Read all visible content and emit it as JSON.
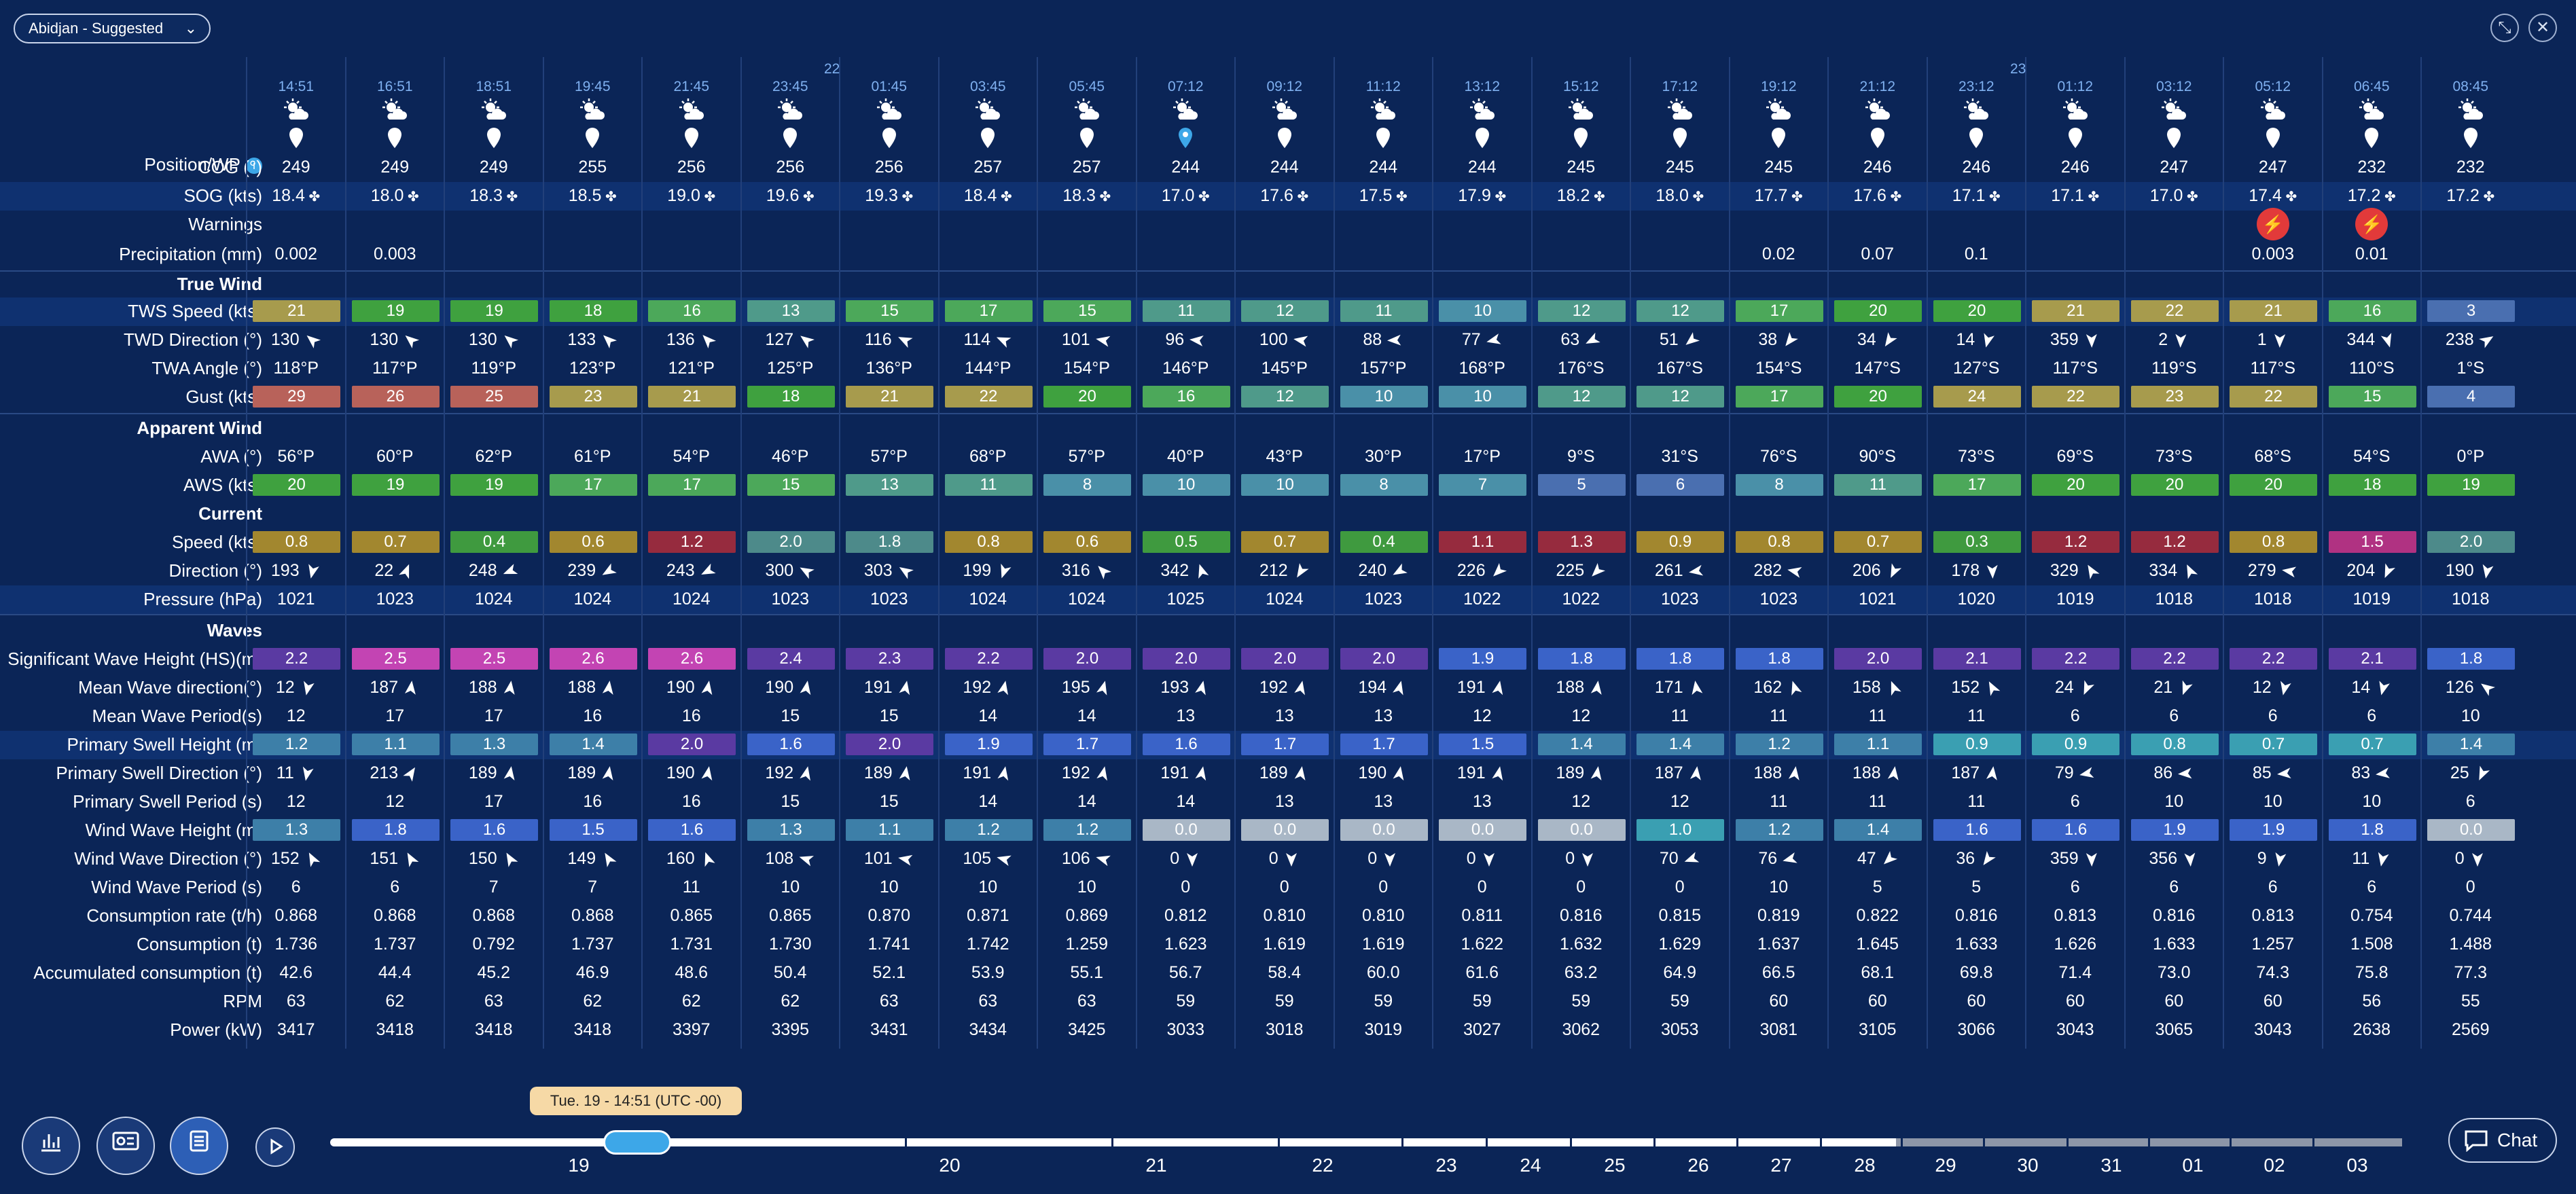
{
  "header": {
    "voyage_label": "Abidjan - Suggested",
    "expand_icon": "expand-icon",
    "close_icon": "close-icon"
  },
  "row_labels": {
    "position": "Position/WP",
    "cog": "COG (°)",
    "sog": "SOG (kts)",
    "warnings": "Warnings",
    "precip": "Precipitation (mm)",
    "true_wind": "True Wind",
    "tws": "TWS Speed (kts)",
    "twd": "TWD Direction (°)",
    "twa": "TWA Angle (°)",
    "gust": "Gust (kts)",
    "apparent_wind": "Apparent Wind",
    "awa": "AWA (°)",
    "aws": "AWS (kts)",
    "current": "Current",
    "cur_speed": "Speed (kts)",
    "cur_dir": "Direction (°)",
    "pressure": "Pressure (hPa)",
    "waves": "Waves",
    "swh": "Significant Wave Height (HS)(m)",
    "mwd": "Mean Wave direction(°)",
    "mwp": "Mean Wave Period(s)",
    "psh": "Primary Swell Height (m)",
    "psd": "Primary Swell Direction (°)",
    "psp": "Primary Swell Period (s)",
    "wwh": "Wind Wave Height (m)",
    "wwd": "Wind Wave Direction (°)",
    "wwp": "Wind Wave Period (s)",
    "cons_rate": "Consumption rate (t/h)",
    "cons": "Consumption (t)",
    "acc_cons": "Accumulated consumption (t)",
    "rpm": "RPM",
    "power": "Power (kW)"
  },
  "day_markers": [
    {
      "col": 6,
      "label": "22"
    },
    {
      "col": 18,
      "label": "23"
    }
  ],
  "columns": [
    {
      "time": "14:51",
      "cog": "249",
      "sog": "18.4",
      "precip": "0.002",
      "warn": false,
      "tws": "21",
      "twd": "130",
      "twa": "118°P",
      "gust": "29",
      "awa": "56°P",
      "aws": "20",
      "cs": "0.8",
      "cd": "193",
      "pr": "1021",
      "swh": "2.2",
      "mwd": "12",
      "mwp": "12",
      "psh": "1.2",
      "psd": "11",
      "psp": "12",
      "wwh": "1.3",
      "wwd": "152",
      "wwp": "6",
      "cr": "0.868",
      "c": "1.736",
      "ac": "42.6",
      "rpm": "63",
      "pw": "3417"
    },
    {
      "time": "16:51",
      "cog": "249",
      "sog": "18.0",
      "precip": "0.003",
      "warn": false,
      "tws": "19",
      "twd": "130",
      "twa": "117°P",
      "gust": "26",
      "awa": "60°P",
      "aws": "19",
      "cs": "0.7",
      "cd": "22",
      "pr": "1023",
      "swh": "2.5",
      "mwd": "187",
      "mwp": "17",
      "psh": "1.1",
      "psd": "213",
      "psp": "12",
      "wwh": "1.8",
      "wwd": "151",
      "wwp": "6",
      "cr": "0.868",
      "c": "1.737",
      "ac": "44.4",
      "rpm": "62",
      "pw": "3418"
    },
    {
      "time": "18:51",
      "cog": "249",
      "sog": "18.3",
      "precip": "",
      "warn": false,
      "tws": "19",
      "twd": "130",
      "twa": "119°P",
      "gust": "25",
      "awa": "62°P",
      "aws": "19",
      "cs": "0.4",
      "cd": "248",
      "pr": "1024",
      "swh": "2.5",
      "mwd": "188",
      "mwp": "17",
      "psh": "1.3",
      "psd": "189",
      "psp": "17",
      "wwh": "1.6",
      "wwd": "150",
      "wwp": "7",
      "cr": "0.868",
      "c": "0.792",
      "ac": "45.2",
      "rpm": "63",
      "pw": "3418"
    },
    {
      "time": "19:45",
      "cog": "255",
      "sog": "18.5",
      "precip": "",
      "warn": false,
      "tws": "18",
      "twd": "133",
      "twa": "123°P",
      "gust": "23",
      "awa": "61°P",
      "aws": "17",
      "cs": "0.6",
      "cd": "239",
      "pr": "1024",
      "swh": "2.6",
      "mwd": "188",
      "mwp": "16",
      "psh": "1.4",
      "psd": "189",
      "psp": "16",
      "wwh": "1.5",
      "wwd": "149",
      "wwp": "7",
      "cr": "0.868",
      "c": "1.737",
      "ac": "46.9",
      "rpm": "62",
      "pw": "3418"
    },
    {
      "time": "21:45",
      "cog": "256",
      "sog": "19.0",
      "precip": "",
      "warn": false,
      "tws": "16",
      "twd": "136",
      "twa": "121°P",
      "gust": "21",
      "awa": "54°P",
      "aws": "17",
      "cs": "1.2",
      "cd": "243",
      "pr": "1024",
      "swh": "2.6",
      "mwd": "190",
      "mwp": "16",
      "psh": "2.0",
      "psd": "190",
      "psp": "16",
      "wwh": "1.6",
      "wwd": "160",
      "wwp": "11",
      "cr": "0.865",
      "c": "1.731",
      "ac": "48.6",
      "rpm": "62",
      "pw": "3397"
    },
    {
      "time": "23:45",
      "cog": "256",
      "sog": "19.6",
      "precip": "",
      "warn": false,
      "tws": "13",
      "twd": "127",
      "twa": "125°P",
      "gust": "18",
      "awa": "46°P",
      "aws": "15",
      "cs": "2.0",
      "cd": "300",
      "pr": "1023",
      "swh": "2.4",
      "mwd": "190",
      "mwp": "15",
      "psh": "1.6",
      "psd": "192",
      "psp": "15",
      "wwh": "1.3",
      "wwd": "108",
      "wwp": "10",
      "cr": "0.865",
      "c": "1.730",
      "ac": "50.4",
      "rpm": "62",
      "pw": "3395"
    },
    {
      "time": "01:45",
      "cog": "256",
      "sog": "19.3",
      "precip": "",
      "warn": false,
      "tws": "15",
      "twd": "116",
      "twa": "136°P",
      "gust": "21",
      "awa": "57°P",
      "aws": "13",
      "cs": "1.8",
      "cd": "303",
      "pr": "1023",
      "swh": "2.3",
      "mwd": "191",
      "mwp": "15",
      "psh": "2.0",
      "psd": "189",
      "psp": "15",
      "wwh": "1.1",
      "wwd": "101",
      "wwp": "10",
      "cr": "0.870",
      "c": "1.741",
      "ac": "52.1",
      "rpm": "63",
      "pw": "3431"
    },
    {
      "time": "03:45",
      "cog": "257",
      "sog": "18.4",
      "precip": "",
      "warn": false,
      "tws": "17",
      "twd": "114",
      "twa": "144°P",
      "gust": "22",
      "awa": "68°P",
      "aws": "11",
      "cs": "0.8",
      "cd": "199",
      "pr": "1024",
      "swh": "2.2",
      "mwd": "192",
      "mwp": "14",
      "psh": "1.9",
      "psd": "191",
      "psp": "14",
      "wwh": "1.2",
      "wwd": "105",
      "wwp": "10",
      "cr": "0.871",
      "c": "1.742",
      "ac": "53.9",
      "rpm": "63",
      "pw": "3434"
    },
    {
      "time": "05:45",
      "cog": "257",
      "sog": "18.3",
      "precip": "",
      "warn": false,
      "tws": "15",
      "twd": "101",
      "twa": "154°P",
      "gust": "20",
      "awa": "57°P",
      "aws": "8",
      "cs": "0.6",
      "cd": "316",
      "pr": "1024",
      "swh": "2.0",
      "mwd": "195",
      "mwp": "14",
      "psh": "1.7",
      "psd": "192",
      "psp": "14",
      "wwh": "1.2",
      "wwd": "106",
      "wwp": "10",
      "cr": "0.869",
      "c": "1.259",
      "ac": "55.1",
      "rpm": "63",
      "pw": "3425"
    },
    {
      "time": "07:12",
      "cog": "244",
      "sog": "17.0",
      "precip": "",
      "warn": false,
      "tws": "11",
      "twd": "96",
      "twa": "146°P",
      "gust": "16",
      "awa": "40°P",
      "aws": "10",
      "cs": "0.5",
      "cd": "342",
      "pr": "1025",
      "swh": "2.0",
      "mwd": "193",
      "mwp": "13",
      "psh": "1.6",
      "psd": "191",
      "psp": "14",
      "wwh": "0.0",
      "wwd": "0",
      "wwp": "0",
      "cr": "0.812",
      "c": "1.623",
      "ac": "56.7",
      "rpm": "59",
      "pw": "3033",
      "wp": true
    },
    {
      "time": "09:12",
      "cog": "244",
      "sog": "17.6",
      "precip": "",
      "warn": false,
      "tws": "12",
      "twd": "100",
      "twa": "145°P",
      "gust": "12",
      "awa": "43°P",
      "aws": "10",
      "cs": "0.7",
      "cd": "212",
      "pr": "1024",
      "swh": "2.0",
      "mwd": "192",
      "mwp": "13",
      "psh": "1.7",
      "psd": "189",
      "psp": "13",
      "wwh": "0.0",
      "wwd": "0",
      "wwp": "0",
      "cr": "0.810",
      "c": "1.619",
      "ac": "58.4",
      "rpm": "59",
      "pw": "3018"
    },
    {
      "time": "11:12",
      "cog": "244",
      "sog": "17.5",
      "precip": "",
      "warn": false,
      "tws": "11",
      "twd": "88",
      "twa": "157°P",
      "gust": "10",
      "awa": "30°P",
      "aws": "8",
      "cs": "0.4",
      "cd": "240",
      "pr": "1023",
      "swh": "2.0",
      "mwd": "194",
      "mwp": "13",
      "psh": "1.7",
      "psd": "190",
      "psp": "13",
      "wwh": "0.0",
      "wwd": "0",
      "wwp": "0",
      "cr": "0.810",
      "c": "1.619",
      "ac": "60.0",
      "rpm": "59",
      "pw": "3019"
    },
    {
      "time": "13:12",
      "cog": "244",
      "sog": "17.9",
      "precip": "",
      "warn": false,
      "tws": "10",
      "twd": "77",
      "twa": "168°P",
      "gust": "10",
      "awa": "17°P",
      "aws": "7",
      "cs": "1.1",
      "cd": "226",
      "pr": "1022",
      "swh": "1.9",
      "mwd": "191",
      "mwp": "12",
      "psh": "1.5",
      "psd": "191",
      "psp": "13",
      "wwh": "0.0",
      "wwd": "0",
      "wwp": "0",
      "cr": "0.811",
      "c": "1.622",
      "ac": "61.6",
      "rpm": "59",
      "pw": "3027"
    },
    {
      "time": "15:12",
      "cog": "245",
      "sog": "18.2",
      "precip": "",
      "warn": false,
      "tws": "12",
      "twd": "63",
      "twa": "176°S",
      "gust": "12",
      "awa": "9°S",
      "aws": "5",
      "cs": "1.3",
      "cd": "225",
      "pr": "1022",
      "swh": "1.8",
      "mwd": "188",
      "mwp": "12",
      "psh": "1.4",
      "psd": "189",
      "psp": "12",
      "wwh": "0.0",
      "wwd": "0",
      "wwp": "0",
      "cr": "0.816",
      "c": "1.632",
      "ac": "63.2",
      "rpm": "59",
      "pw": "3062"
    },
    {
      "time": "17:12",
      "cog": "245",
      "sog": "18.0",
      "precip": "",
      "warn": false,
      "tws": "12",
      "twd": "51",
      "twa": "167°S",
      "gust": "12",
      "awa": "31°S",
      "aws": "6",
      "cs": "0.9",
      "cd": "261",
      "pr": "1023",
      "swh": "1.8",
      "mwd": "171",
      "mwp": "11",
      "psh": "1.4",
      "psd": "187",
      "psp": "12",
      "wwh": "1.0",
      "wwd": "70",
      "wwp": "0",
      "cr": "0.815",
      "c": "1.629",
      "ac": "64.9",
      "rpm": "59",
      "pw": "3053"
    },
    {
      "time": "19:12",
      "cog": "245",
      "sog": "17.7",
      "precip": "0.02",
      "warn": false,
      "tws": "17",
      "twd": "38",
      "twa": "154°S",
      "gust": "17",
      "awa": "76°S",
      "aws": "8",
      "cs": "0.8",
      "cd": "282",
      "pr": "1023",
      "swh": "1.8",
      "mwd": "162",
      "mwp": "11",
      "psh": "1.2",
      "psd": "188",
      "psp": "11",
      "wwh": "1.2",
      "wwd": "76",
      "wwp": "10",
      "cr": "0.819",
      "c": "1.637",
      "ac": "66.5",
      "rpm": "60",
      "pw": "3081"
    },
    {
      "time": "21:12",
      "cog": "246",
      "sog": "17.6",
      "precip": "0.07",
      "warn": false,
      "tws": "20",
      "twd": "34",
      "twa": "147°S",
      "gust": "20",
      "awa": "90°S",
      "aws": "11",
      "cs": "0.7",
      "cd": "206",
      "pr": "1021",
      "swh": "2.0",
      "mwd": "158",
      "mwp": "11",
      "psh": "1.1",
      "psd": "188",
      "psp": "11",
      "wwh": "1.4",
      "wwd": "47",
      "wwp": "5",
      "cr": "0.822",
      "c": "1.645",
      "ac": "68.1",
      "rpm": "60",
      "pw": "3105"
    },
    {
      "time": "23:12",
      "cog": "246",
      "sog": "17.1",
      "precip": "0.1",
      "warn": false,
      "tws": "20",
      "twd": "14",
      "twa": "127°S",
      "gust": "24",
      "awa": "73°S",
      "aws": "17",
      "cs": "0.3",
      "cd": "178",
      "pr": "1020",
      "swh": "2.1",
      "mwd": "152",
      "mwp": "11",
      "psh": "0.9",
      "psd": "187",
      "psp": "11",
      "wwh": "1.6",
      "wwd": "36",
      "wwp": "5",
      "cr": "0.816",
      "c": "1.633",
      "ac": "69.8",
      "rpm": "60",
      "pw": "3066"
    },
    {
      "time": "01:12",
      "cog": "246",
      "sog": "17.1",
      "precip": "",
      "warn": false,
      "tws": "21",
      "twd": "359",
      "twa": "117°S",
      "gust": "22",
      "awa": "69°S",
      "aws": "20",
      "cs": "1.2",
      "cd": "329",
      "pr": "1019",
      "swh": "2.2",
      "mwd": "24",
      "mwp": "6",
      "psh": "0.9",
      "psd": "79",
      "psp": "6",
      "wwh": "1.6",
      "wwd": "359",
      "wwp": "6",
      "cr": "0.813",
      "c": "1.626",
      "ac": "71.4",
      "rpm": "60",
      "pw": "3043"
    },
    {
      "time": "03:12",
      "cog": "247",
      "sog": "17.0",
      "precip": "",
      "warn": false,
      "tws": "22",
      "twd": "2",
      "twa": "119°S",
      "gust": "23",
      "awa": "73°S",
      "aws": "20",
      "cs": "1.2",
      "cd": "334",
      "pr": "1018",
      "swh": "2.2",
      "mwd": "21",
      "mwp": "6",
      "psh": "0.8",
      "psd": "86",
      "psp": "10",
      "wwh": "1.9",
      "wwd": "356",
      "wwp": "6",
      "cr": "0.816",
      "c": "1.633",
      "ac": "73.0",
      "rpm": "60",
      "pw": "3065"
    },
    {
      "time": "05:12",
      "cog": "247",
      "sog": "17.4",
      "precip": "0.003",
      "warn": true,
      "tws": "21",
      "twd": "1",
      "twa": "117°S",
      "gust": "22",
      "awa": "68°S",
      "aws": "20",
      "cs": "0.8",
      "cd": "279",
      "pr": "1018",
      "swh": "2.2",
      "mwd": "12",
      "mwp": "6",
      "psh": "0.7",
      "psd": "85",
      "psp": "10",
      "wwh": "1.9",
      "wwd": "9",
      "wwp": "6",
      "cr": "0.813",
      "c": "1.257",
      "ac": "74.3",
      "rpm": "60",
      "pw": "3043"
    },
    {
      "time": "06:45",
      "cog": "232",
      "sog": "17.2",
      "precip": "0.01",
      "warn": true,
      "tws": "16",
      "twd": "344",
      "twa": "110°S",
      "gust": "15",
      "awa": "54°S",
      "aws": "18",
      "cs": "1.5",
      "cd": "204",
      "pr": "1019",
      "swh": "2.1",
      "mwd": "14",
      "mwp": "6",
      "psh": "0.7",
      "psd": "83",
      "psp": "10",
      "wwh": "1.8",
      "wwd": "11",
      "wwp": "6",
      "cr": "0.754",
      "c": "1.508",
      "ac": "75.8",
      "rpm": "56",
      "pw": "2638"
    },
    {
      "time": "08:45",
      "cog": "232",
      "sog": "17.2",
      "precip": "",
      "warn": false,
      "tws": "3",
      "twd": "238",
      "twa": "1°S",
      "gust": "4",
      "awa": "0°P",
      "aws": "19",
      "cs": "2.0",
      "cd": "190",
      "pr": "1018",
      "swh": "1.8",
      "mwd": "126",
      "mwp": "10",
      "psh": "1.4",
      "psd": "25",
      "psp": "6",
      "wwh": "0.0",
      "wwd": "0",
      "wwp": "0",
      "cr": "0.744",
      "c": "1.488",
      "ac": "77.3",
      "rpm": "55",
      "pw": "2569"
    }
  ],
  "footer": {
    "tooltip": "Tue. 19 - 14:51 (UTC -00)",
    "ticks": [
      "19",
      "20",
      "21",
      "22",
      "23",
      "24",
      "25",
      "26",
      "27",
      "28",
      "29",
      "30",
      "31",
      "01",
      "02",
      "03"
    ],
    "chat_label": "Chat",
    "buttons": [
      "chart-icon",
      "route-weather-icon",
      "table-icon",
      "play-icon"
    ]
  },
  "colors": {
    "background": "#0b2557",
    "band": "#0f3170",
    "timeline_handle": "#3da7e8",
    "warning": "#e23a3a"
  }
}
